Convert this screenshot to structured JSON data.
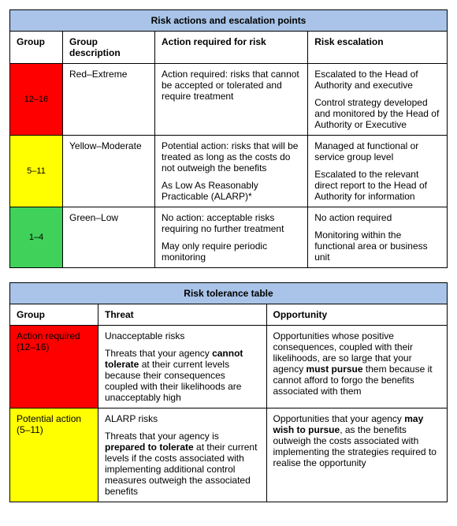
{
  "colors": {
    "header_bg": "#a9c4e8",
    "red": "#ff0000",
    "yellow": "#ffff00",
    "green": "#3fd15a",
    "border": "#000000"
  },
  "table1": {
    "title": "Risk actions and escalation points",
    "headers": [
      "Group",
      "Group description",
      "Action required for risk",
      "Risk escalation"
    ],
    "rows": [
      {
        "group": "12–16",
        "group_color": "red",
        "desc": "Red–Extreme",
        "action": [
          "Action required: risks that cannot be accepted or tolerated and require treatment"
        ],
        "escalation": [
          "Escalated to the Head of Authority and executive",
          "Control strategy developed and monitored by the Head of Authority or Executive"
        ]
      },
      {
        "group": "5–11",
        "group_color": "yellow",
        "desc": "Yellow–Moderate",
        "action": [
          "Potential action: risks that will be treated as long as the costs do not outweigh the benefits",
          "As Low As Reasonably Practicable (ALARP)*"
        ],
        "escalation": [
          "Managed at functional or service group level",
          "Escalated to the relevant direct report to the Head of Authority for information"
        ]
      },
      {
        "group": "1–4",
        "group_color": "green",
        "desc": "Green–Low",
        "action": [
          "No action: acceptable risks requiring no further treatment",
          "May only require periodic monitoring"
        ],
        "escalation": [
          "No action required",
          "Monitoring within the functional area or business unit"
        ]
      }
    ]
  },
  "table2": {
    "title": "Risk tolerance table",
    "headers": [
      "Group",
      "Threat",
      "Opportunity"
    ],
    "rows": [
      {
        "group_lines": [
          "Action required",
          "(12–16)"
        ],
        "group_color": "red",
        "threat_html": "<p>Unacceptable risks</p><p>Threats that your agency <span class=\"bold\">cannot tolerate</span> at their current levels because their consequences coupled with their likelihoods are unacceptably high</p>",
        "opportunity_html": "<p>Opportunities whose positive consequences, coupled with their likelihoods, are so large that your agency <span class=\"bold\">must pursue</span> them because it cannot afford to forgo the benefits associated with them</p>"
      },
      {
        "group_lines": [
          "Potential action",
          "(5–11)"
        ],
        "group_color": "yellow",
        "threat_html": "<p>ALARP risks</p><p>Threats that your agency is <span class=\"bold\">prepared to tolerate</span> at their current levels if the costs associated with implementing additional control measures outweigh the associated benefits</p>",
        "opportunity_html": "<p>Opportunities that your agency <span class=\"bold\">may wish to pursue</span>, as the benefits outweigh the costs associated with implementing the strategies required to realise the opportunity</p>"
      }
    ]
  }
}
